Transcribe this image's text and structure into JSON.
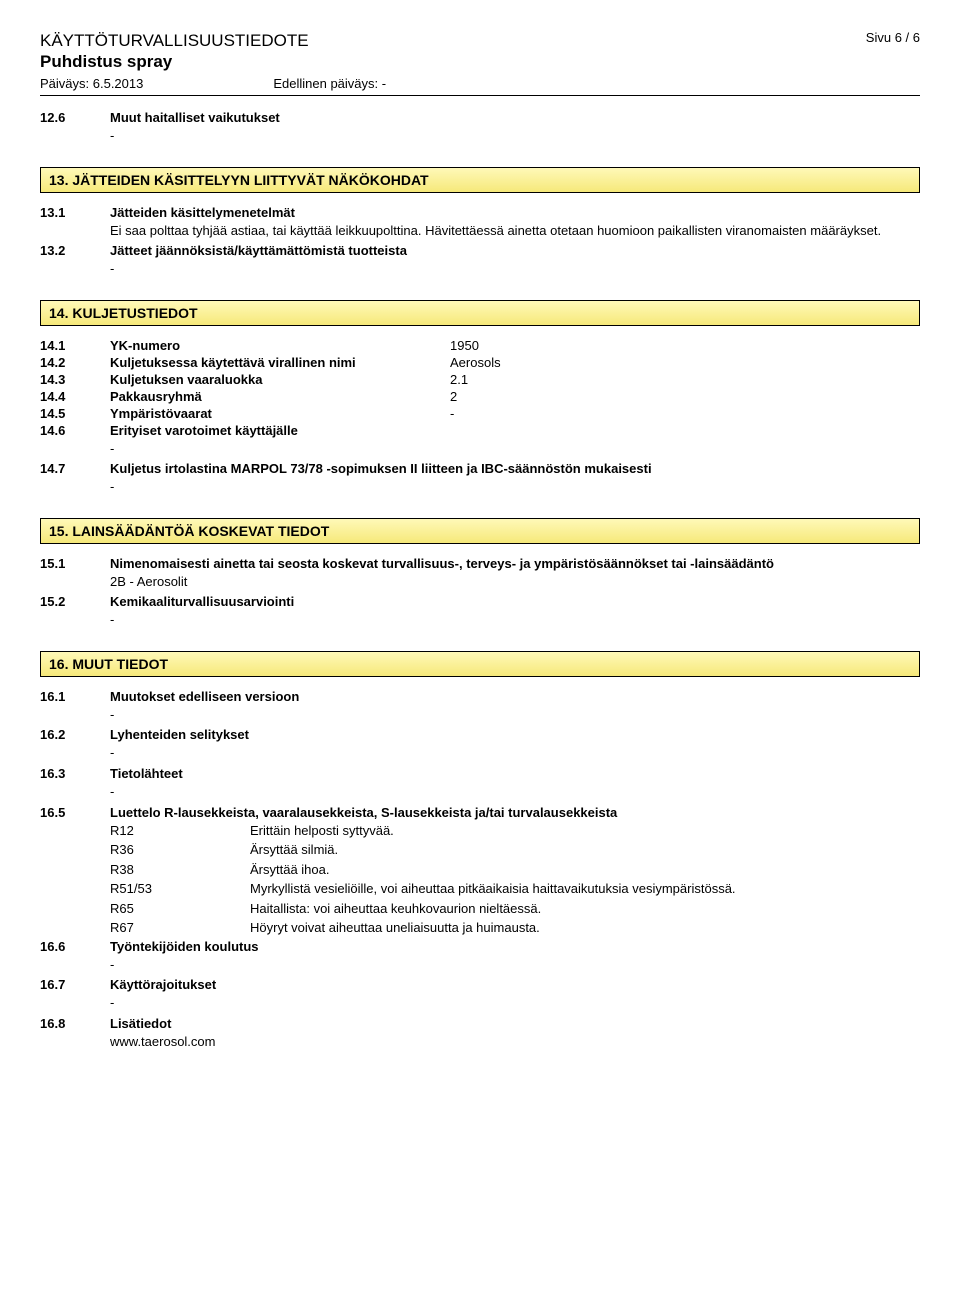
{
  "header": {
    "doc_title": "KÄYTTÖTURVALLISUUSTIEDOTE",
    "product": "Puhdistus spray",
    "date_label": "Päiväys: 6.5.2013",
    "prev_date_label": "Edellinen päiväys: -",
    "page": "Sivu  6 / 6"
  },
  "s12_6": {
    "num": "12.6",
    "label": "Muut haitalliset vaikutukset",
    "body": "-"
  },
  "s13": {
    "title": "13. JÄTTEIDEN KÄSITTELYYN LIITTYVÄT NÄKÖKOHDAT",
    "r1": {
      "num": "13.1",
      "label": "Jätteiden käsittelymenetelmät",
      "body": "Ei saa polttaa tyhjää astiaa, tai käyttää leikkuupolttina. Hävitettäessä ainetta otetaan huomioon paikallisten viranomaisten määräykset."
    },
    "r2": {
      "num": "13.2",
      "label": "Jätteet jäännöksistä/käyttämättömistä tuotteista",
      "body": "-"
    }
  },
  "s14": {
    "title": "14. KULJETUSTIEDOT",
    "r1": {
      "num": "14.1",
      "label": "YK-numero",
      "value": "1950"
    },
    "r2": {
      "num": "14.2",
      "label": "Kuljetuksessa käytettävä virallinen nimi",
      "value": "Aerosols"
    },
    "r3": {
      "num": "14.3",
      "label": "Kuljetuksen vaaraluokka",
      "value": "2.1"
    },
    "r4": {
      "num": "14.4",
      "label": "Pakkausryhmä",
      "value": "2"
    },
    "r5": {
      "num": "14.5",
      "label": "Ympäristövaarat",
      "value": "-"
    },
    "r6": {
      "num": "14.6",
      "label": "Erityiset varotoimet käyttäjälle",
      "body": "-"
    },
    "r7": {
      "num": "14.7",
      "label": "Kuljetus irtolastina MARPOL 73/78 -sopimuksen II liitteen ja IBC-säännöstön mukaisesti",
      "body": "-"
    }
  },
  "s15": {
    "title": "15. LAINSÄÄDÄNTÖÄ KOSKEVAT TIEDOT",
    "r1": {
      "num": "15.1",
      "label": "Nimenomaisesti ainetta tai seosta koskevat turvallisuus-, terveys- ja ympäristösäännökset tai -lainsäädäntö",
      "body": "2B - Aerosolit"
    },
    "r2": {
      "num": "15.2",
      "label": "Kemikaaliturvallisuusarviointi",
      "body": "-"
    }
  },
  "s16": {
    "title": "16. MUUT TIEDOT",
    "r1": {
      "num": "16.1",
      "label": "Muutokset edelliseen versioon",
      "body": "-"
    },
    "r2": {
      "num": "16.2",
      "label": "Lyhenteiden selitykset",
      "body": "-"
    },
    "r3": {
      "num": "16.3",
      "label": "Tietolähteet",
      "body": "-"
    },
    "r5": {
      "num": "16.5",
      "label": "Luettelo R-lausekkeista, vaaralausekkeista, S-lausekkeista ja/tai turvalausekkeista"
    },
    "rlist": [
      {
        "code": "R12",
        "text": "Erittäin helposti syttyvää."
      },
      {
        "code": "R36",
        "text": "Ärsyttää silmiä."
      },
      {
        "code": "R38",
        "text": "Ärsyttää ihoa."
      },
      {
        "code": "R51/53",
        "text": "Myrkyllistä vesieliöille, voi aiheuttaa pitkäaikaisia haittavaikutuksia vesiympäristössä."
      },
      {
        "code": "R65",
        "text": "Haitallista: voi aiheuttaa keuhkovaurion nieltäessä."
      },
      {
        "code": "R67",
        "text": "Höyryt voivat aiheuttaa uneliaisuutta ja huimausta."
      }
    ],
    "r6": {
      "num": "16.6",
      "label": "Työntekijöiden koulutus",
      "body": "-"
    },
    "r7": {
      "num": "16.7",
      "label": "Käyttörajoitukset",
      "body": "-"
    },
    "r8": {
      "num": "16.8",
      "label": "Lisätiedot",
      "body": "www.taerosol.com"
    }
  }
}
